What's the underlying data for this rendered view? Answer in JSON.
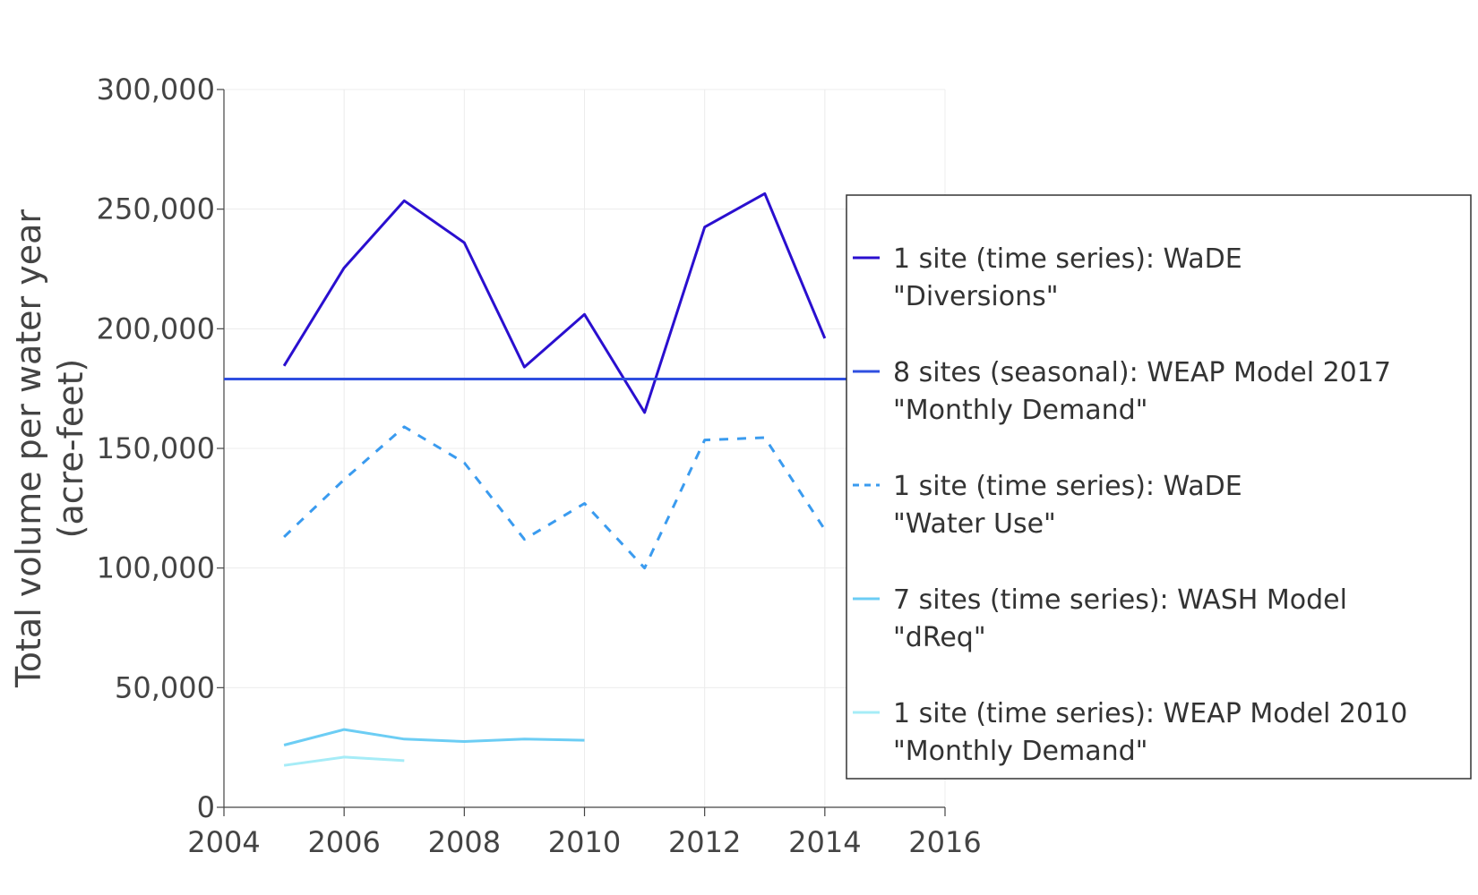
{
  "chart_data": {
    "type": "line",
    "title": "",
    "xlabel": "",
    "ylabel_lines": [
      "Total volume per water year",
      "(acre-feet)"
    ],
    "xlim": [
      2004,
      2016
    ],
    "ylim": [
      0,
      300000
    ],
    "x_ticks": [
      2004,
      2006,
      2008,
      2010,
      2012,
      2014,
      2016
    ],
    "x_tick_labels": [
      "2004",
      "2006",
      "2008",
      "2010",
      "2012",
      "2014",
      "2016"
    ],
    "y_ticks": [
      0,
      50000,
      100000,
      150000,
      200000,
      250000,
      300000
    ],
    "y_tick_labels": [
      "0",
      "50,000",
      "100,000",
      "150,000",
      "200,000",
      "250,000",
      "300,000"
    ],
    "grid": true,
    "legend_position": "right",
    "series": [
      {
        "name_lines": [
          "1 site (time series): WaDE",
          "\"Diversions\""
        ],
        "color": "#2a0fcf",
        "dash": "solid",
        "x": [
          2005,
          2006,
          2007,
          2008,
          2009,
          2010,
          2011,
          2012,
          2013,
          2014
        ],
        "values": [
          184500,
          225500,
          253500,
          236000,
          184000,
          206000,
          165000,
          242500,
          256500,
          196000
        ]
      },
      {
        "name_lines": [
          "8 sites (seasonal): WEAP Model 2017",
          "\"Monthly Demand\""
        ],
        "color": "#2f4fe0",
        "dash": "solid",
        "x": [
          2004,
          2016
        ],
        "values": [
          179000,
          179000
        ]
      },
      {
        "name_lines": [
          "1 site (time series): WaDE",
          "\"Water Use\""
        ],
        "color": "#3a9bef",
        "dash": "dash",
        "x": [
          2005,
          2006,
          2007,
          2008,
          2009,
          2010,
          2011,
          2012,
          2013,
          2014
        ],
        "values": [
          113000,
          137000,
          159000,
          144000,
          112000,
          127000,
          100000,
          153500,
          154500,
          116000
        ]
      },
      {
        "name_lines": [
          "7 sites (time series): WASH Model",
          "\"dReq\""
        ],
        "color": "#6ccdf4",
        "dash": "solid",
        "x": [
          2005,
          2006,
          2007,
          2008,
          2009,
          2010
        ],
        "values": [
          26000,
          32500,
          28500,
          27500,
          28500,
          28000
        ]
      },
      {
        "name_lines": [
          "1 site (time series): WEAP Model 2010",
          "\"Monthly Demand\""
        ],
        "color": "#a6ecf7",
        "dash": "solid",
        "x": [
          2005,
          2006,
          2007
        ],
        "values": [
          17500,
          21000,
          19500
        ]
      }
    ]
  }
}
